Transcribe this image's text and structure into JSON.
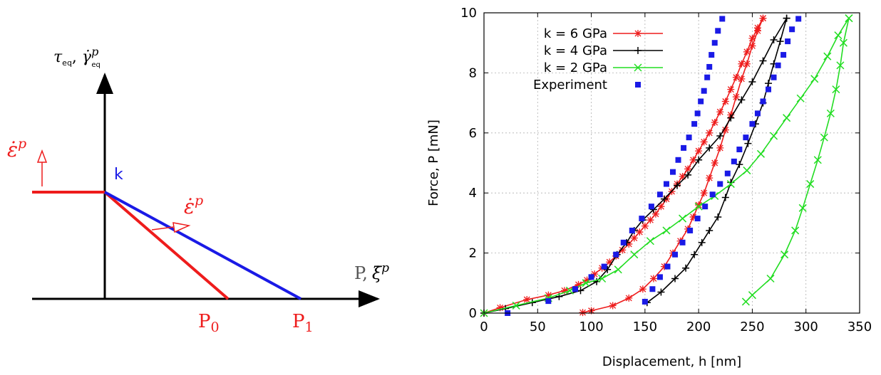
{
  "colors": {
    "red": "#ee1c1c",
    "black": "#000000",
    "green": "#22dd22",
    "blue": "#1a1ae6",
    "grid": "#b0b0b0"
  },
  "diagram": {
    "y_axis_label_tau": "τ",
    "y_axis_label_tau_sub": "eq",
    "y_axis_label_gamma": "γ̇",
    "y_axis_label_gamma_sup": "p",
    "y_axis_label_gamma_sub": "eq",
    "x_axis_label_p": "P,",
    "x_axis_label_xi": "ξ̇",
    "x_axis_label_xi_sup": "p",
    "label_k": "k",
    "label_p0": "P",
    "label_p0_sub": "0",
    "label_p1": "P",
    "label_p1_sub": "1",
    "label_epsilon_left": "ε̇",
    "label_epsilon_left_sup": "p",
    "label_epsilon_mid": "ε̇",
    "label_epsilon_mid_sup": "p",
    "icons": [
      "up-arrow-icon",
      "flow-direction-arrow-icon"
    ]
  },
  "chart_data": {
    "type": "scatter",
    "xlabel": "Displacement, h [nm]",
    "ylabel": "Force, P [mN]",
    "xlim": [
      0,
      350
    ],
    "ylim": [
      0,
      10
    ],
    "xticks": [
      "0",
      "50",
      "100",
      "150",
      "200",
      "250",
      "300",
      "350"
    ],
    "yticks": [
      "0",
      "2",
      "4",
      "6",
      "8",
      "10"
    ],
    "grid": true,
    "legend_position": "top-left",
    "series": [
      {
        "name": "k = 6 GPa",
        "color": "#ee1c1c",
        "marker": "asterisk",
        "line": true,
        "loading": [
          [
            0,
            0
          ],
          [
            15,
            0.18
          ],
          [
            40,
            0.45
          ],
          [
            60,
            0.6
          ],
          [
            75,
            0.75
          ],
          [
            88,
            0.95
          ],
          [
            96,
            1.1
          ],
          [
            103,
            1.3
          ],
          [
            110,
            1.5
          ],
          [
            117,
            1.7
          ],
          [
            123,
            1.9
          ],
          [
            129,
            2.1
          ],
          [
            135,
            2.3
          ],
          [
            140,
            2.5
          ],
          [
            145,
            2.7
          ],
          [
            150,
            2.9
          ],
          [
            155,
            3.1
          ],
          [
            160,
            3.3
          ],
          [
            165,
            3.55
          ],
          [
            170,
            3.8
          ],
          [
            175,
            4.05
          ],
          [
            180,
            4.3
          ],
          [
            185,
            4.55
          ],
          [
            190,
            4.8
          ],
          [
            195,
            5.1
          ],
          [
            200,
            5.4
          ],
          [
            205,
            5.7
          ],
          [
            210,
            6.0
          ],
          [
            215,
            6.35
          ],
          [
            220,
            6.7
          ],
          [
            225,
            7.05
          ],
          [
            230,
            7.45
          ],
          [
            235,
            7.85
          ],
          [
            240,
            8.3
          ],
          [
            245,
            8.7
          ],
          [
            250,
            9.15
          ],
          [
            255,
            9.5
          ],
          [
            260,
            9.82
          ]
        ],
        "unloading": [
          [
            260,
            9.82
          ],
          [
            255,
            9.4
          ],
          [
            250,
            8.9
          ],
          [
            245,
            8.3
          ],
          [
            240,
            7.8
          ],
          [
            235,
            7.2
          ],
          [
            230,
            6.6
          ],
          [
            225,
            6.1
          ],
          [
            220,
            5.5
          ],
          [
            215,
            5.0
          ],
          [
            210,
            4.5
          ],
          [
            205,
            4.0
          ],
          [
            200,
            3.6
          ],
          [
            195,
            3.2
          ],
          [
            190,
            2.8
          ],
          [
            183,
            2.4
          ],
          [
            176,
            2.0
          ],
          [
            168,
            1.55
          ],
          [
            158,
            1.15
          ],
          [
            148,
            0.8
          ],
          [
            135,
            0.5
          ],
          [
            120,
            0.25
          ],
          [
            100,
            0.08
          ],
          [
            92,
            0.02
          ]
        ]
      },
      {
        "name": "k = 4 GPa",
        "color": "#000000",
        "marker": "plus",
        "line": true,
        "loading": [
          [
            0,
            0
          ],
          [
            20,
            0.15
          ],
          [
            45,
            0.35
          ],
          [
            70,
            0.55
          ],
          [
            90,
            0.75
          ],
          [
            105,
            1.05
          ],
          [
            115,
            1.45
          ],
          [
            124,
            1.95
          ],
          [
            133,
            2.35
          ],
          [
            140,
            2.75
          ],
          [
            148,
            3.1
          ],
          [
            158,
            3.45
          ],
          [
            168,
            3.8
          ],
          [
            180,
            4.25
          ],
          [
            190,
            4.6
          ],
          [
            200,
            5.1
          ],
          [
            210,
            5.5
          ],
          [
            220,
            5.9
          ],
          [
            230,
            6.5
          ],
          [
            240,
            7.1
          ],
          [
            250,
            7.7
          ],
          [
            260,
            8.4
          ],
          [
            270,
            9.1
          ],
          [
            282,
            9.82
          ]
        ],
        "unloading": [
          [
            282,
            9.82
          ],
          [
            276,
            9.05
          ],
          [
            270,
            8.3
          ],
          [
            265,
            7.65
          ],
          [
            260,
            7.0
          ],
          [
            253,
            6.3
          ],
          [
            246,
            5.65
          ],
          [
            238,
            4.95
          ],
          [
            230,
            4.35
          ],
          [
            225,
            3.85
          ],
          [
            218,
            3.2
          ],
          [
            210,
            2.75
          ],
          [
            203,
            2.35
          ],
          [
            196,
            1.95
          ],
          [
            188,
            1.5
          ],
          [
            178,
            1.15
          ],
          [
            165,
            0.7
          ],
          [
            152,
            0.35
          ]
        ]
      },
      {
        "name": "k = 2 GPa",
        "color": "#22dd22",
        "marker": "x",
        "line": true,
        "loading": [
          [
            0,
            0
          ],
          [
            30,
            0.25
          ],
          [
            60,
            0.5
          ],
          [
            80,
            0.75
          ],
          [
            95,
            1.0
          ],
          [
            110,
            1.15
          ],
          [
            125,
            1.45
          ],
          [
            140,
            1.95
          ],
          [
            155,
            2.4
          ],
          [
            170,
            2.75
          ],
          [
            185,
            3.15
          ],
          [
            200,
            3.55
          ],
          [
            215,
            3.9
          ],
          [
            230,
            4.3
          ],
          [
            245,
            4.75
          ],
          [
            258,
            5.3
          ],
          [
            270,
            5.9
          ],
          [
            282,
            6.5
          ],
          [
            295,
            7.15
          ],
          [
            308,
            7.8
          ],
          [
            320,
            8.55
          ],
          [
            330,
            9.25
          ],
          [
            340,
            9.82
          ]
        ],
        "unloading": [
          [
            340,
            9.82
          ],
          [
            335,
            9.0
          ],
          [
            332,
            8.25
          ],
          [
            328,
            7.45
          ],
          [
            323,
            6.65
          ],
          [
            317,
            5.85
          ],
          [
            311,
            5.1
          ],
          [
            304,
            4.3
          ],
          [
            297,
            3.5
          ],
          [
            290,
            2.75
          ],
          [
            280,
            1.95
          ],
          [
            267,
            1.15
          ],
          [
            250,
            0.6
          ],
          [
            244,
            0.38
          ]
        ]
      },
      {
        "name": "Experiment",
        "color": "#1a1ae6",
        "marker": "square",
        "line": false,
        "points": [
          [
            22,
            0.0
          ],
          [
            60,
            0.4
          ],
          [
            85,
            0.8
          ],
          [
            100,
            1.2
          ],
          [
            112,
            1.55
          ],
          [
            123,
            1.95
          ],
          [
            130,
            2.35
          ],
          [
            138,
            2.75
          ],
          [
            147,
            3.15
          ],
          [
            156,
            3.55
          ],
          [
            164,
            3.95
          ],
          [
            170,
            4.3
          ],
          [
            176,
            4.7
          ],
          [
            181,
            5.1
          ],
          [
            186,
            5.5
          ],
          [
            191,
            5.85
          ],
          [
            196,
            6.3
          ],
          [
            199,
            6.65
          ],
          [
            202,
            7.05
          ],
          [
            205,
            7.4
          ],
          [
            208,
            7.85
          ],
          [
            210,
            8.2
          ],
          [
            212,
            8.6
          ],
          [
            215,
            9.0
          ],
          [
            218,
            9.4
          ],
          [
            222,
            9.8
          ],
          [
            293,
            9.8
          ],
          [
            287,
            9.45
          ],
          [
            283,
            9.05
          ],
          [
            279,
            8.6
          ],
          [
            274,
            8.25
          ],
          [
            270,
            7.85
          ],
          [
            265,
            7.45
          ],
          [
            260,
            7.05
          ],
          [
            255,
            6.65
          ],
          [
            250,
            6.3
          ],
          [
            244,
            5.85
          ],
          [
            238,
            5.45
          ],
          [
            233,
            5.05
          ],
          [
            227,
            4.65
          ],
          [
            220,
            4.3
          ],
          [
            213,
            3.95
          ],
          [
            206,
            3.55
          ],
          [
            199,
            3.15
          ],
          [
            192,
            2.75
          ],
          [
            185,
            2.35
          ],
          [
            178,
            1.95
          ],
          [
            171,
            1.55
          ],
          [
            164,
            1.2
          ],
          [
            157,
            0.8
          ],
          [
            150,
            0.38
          ]
        ]
      }
    ]
  }
}
